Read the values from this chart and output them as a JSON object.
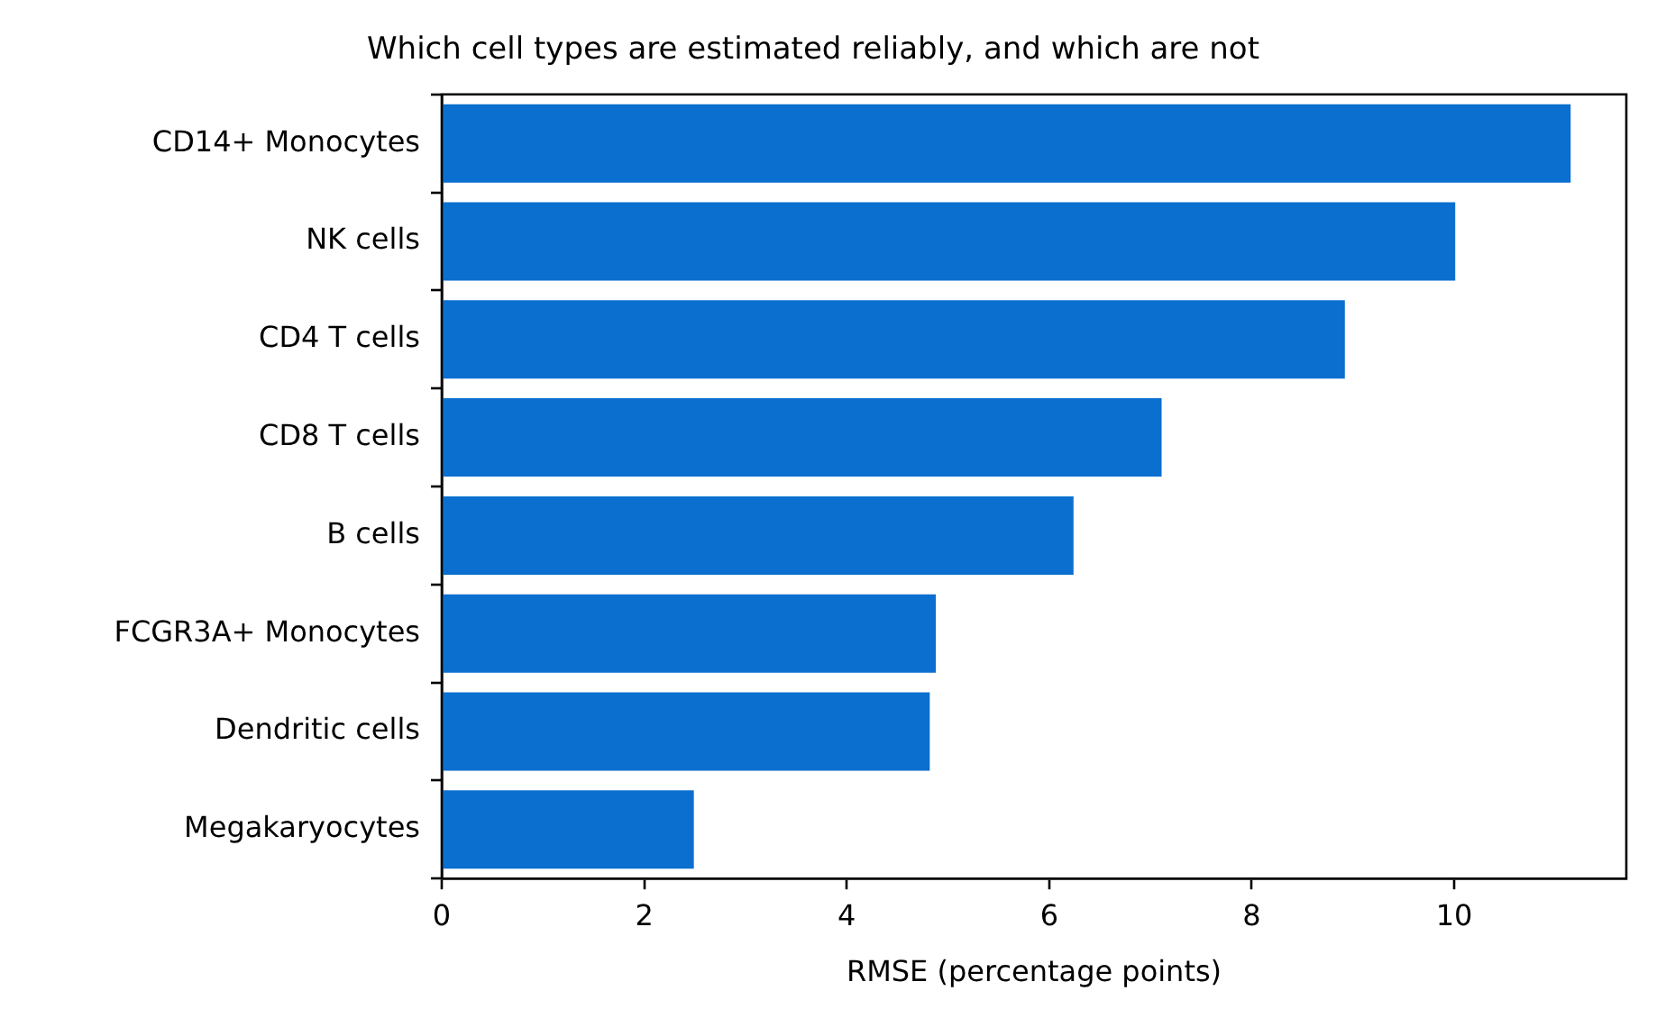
{
  "chart_data": {
    "type": "bar",
    "orientation": "horizontal",
    "title": "Which cell types are estimated reliably, and which are not",
    "xlabel": "RMSE (percentage points)",
    "categories": [
      "CD14+ Monocytes",
      "NK cells",
      "CD4 T cells",
      "CD8 T cells",
      "B cells",
      "FCGR3A+ Monocytes",
      "Dendritic cells",
      "Megakaryocytes"
    ],
    "values": [
      11.15,
      10.01,
      8.92,
      7.11,
      6.24,
      4.88,
      4.82,
      2.49
    ],
    "color": "#0b6fcf",
    "xlim": [
      0,
      11.7
    ],
    "xticks": [
      0,
      2,
      4,
      6,
      8,
      10
    ],
    "grid": false,
    "legend": false
  }
}
